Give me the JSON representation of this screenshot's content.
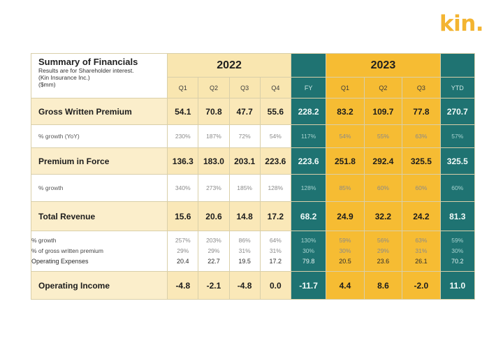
{
  "logo": "kin.",
  "title": {
    "main": "Summary of Financials",
    "sub1": "Results are for Shareholder interest.",
    "sub2": "(Kin Insurance Inc.)",
    "sub3": "($mm)"
  },
  "years": {
    "y2022": "2022",
    "y2023": "2023"
  },
  "columns": [
    "Q1",
    "Q2",
    "Q3",
    "Q4",
    "FY",
    "Q1",
    "Q2",
    "Q3",
    "YTD"
  ],
  "rows": [
    {
      "kind": "major",
      "label": "Gross Written Premium",
      "values": [
        "54.1",
        "70.8",
        "47.7",
        "55.6",
        "228.2",
        "83.2",
        "109.7",
        "77.8",
        "270.7"
      ]
    },
    {
      "kind": "minor",
      "label": "% growth (YoY)",
      "values": [
        "230%",
        "187%",
        "72%",
        "54%",
        "117%",
        "54%",
        "55%",
        "63%",
        "57%"
      ]
    },
    {
      "kind": "major",
      "label": "Premium in Force",
      "values": [
        "136.3",
        "183.0",
        "203.1",
        "223.6",
        "223.6",
        "251.8",
        "292.4",
        "325.5",
        "325.5"
      ]
    },
    {
      "kind": "minor",
      "label": "% growth",
      "values": [
        "340%",
        "273%",
        "185%",
        "128%",
        "128%",
        "85%",
        "60%",
        "60%",
        "60%"
      ]
    },
    {
      "kind": "major",
      "label": "Total Revenue",
      "values": [
        "15.6",
        "20.6",
        "14.8",
        "17.2",
        "68.2",
        "24.9",
        "32.2",
        "24.2",
        "81.3"
      ]
    },
    {
      "kind": "stack",
      "labels": [
        "% growth",
        "% of gross written premium",
        "Operating Expenses"
      ],
      "values": [
        [
          "257%",
          "203%",
          "86%",
          "64%",
          "130%",
          "59%",
          "56%",
          "63%",
          "59%"
        ],
        [
          "29%",
          "29%",
          "31%",
          "31%",
          "30%",
          "30%",
          "29%",
          "31%",
          "30%"
        ],
        [
          "20.4",
          "22.7",
          "19.5",
          "17.2",
          "79.8",
          "20.5",
          "23.6",
          "26.1",
          "70.2"
        ]
      ]
    },
    {
      "kind": "major",
      "label": "Operating Income",
      "values": [
        "-4.8",
        "-2.1",
        "-4.8",
        "0.0",
        "-11.7",
        "4.4",
        "8.6",
        "-2.0",
        "11.0"
      ]
    }
  ],
  "colors": {
    "gold": "#f6bc33",
    "teal": "#1f7372",
    "cream": "#fae8b8"
  }
}
